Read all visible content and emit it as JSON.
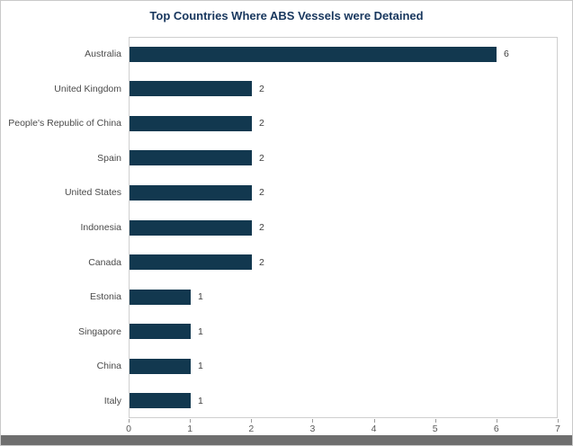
{
  "chart_data": {
    "type": "bar",
    "orientation": "horizontal",
    "title": "Top Countries Where ABS Vessels were Detained",
    "categories": [
      "Australia",
      "United Kingdom",
      "People's Republic of China",
      "Spain",
      "United States",
      "Indonesia",
      "Canada",
      "Estonia",
      "Singapore",
      "China",
      "Italy"
    ],
    "values": [
      6,
      2,
      2,
      2,
      2,
      2,
      2,
      1,
      1,
      1,
      1
    ],
    "xlim": [
      0,
      7
    ],
    "x_ticks": [
      0,
      1,
      2,
      3,
      4,
      5,
      6,
      7
    ],
    "value_labels_shown": true,
    "grid": false,
    "legend": "none",
    "bar_color": "#12384f",
    "title_color": "#17365d",
    "axis_label_color": "#595959",
    "plot_border_color": "#cfcfcf"
  },
  "page": {
    "bottom_bar_color": "#6e6e6e"
  }
}
